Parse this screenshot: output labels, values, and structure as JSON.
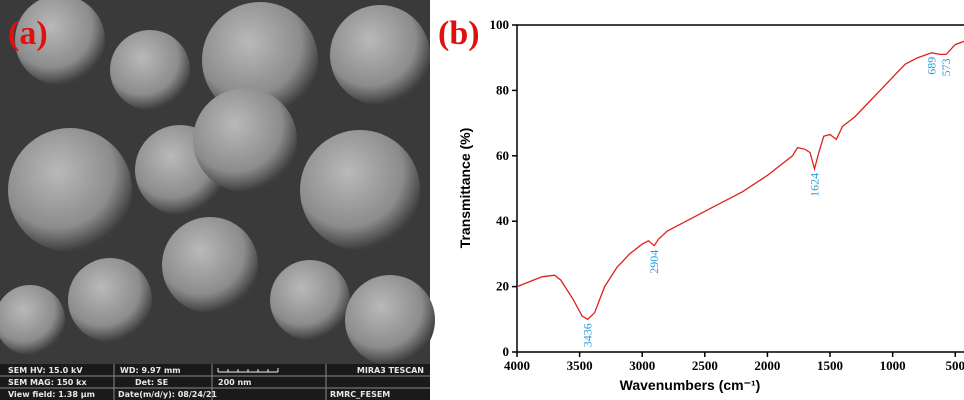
{
  "panel_labels": [
    "(a)",
    "(b)"
  ],
  "sem_info": {
    "hv": "SEM HV: 15.0 kV",
    "wd": "WD: 9.97 mm",
    "instrument": "MIRA3 TESCAN",
    "mag": "SEM MAG: 150 kx",
    "det": "Det: SE",
    "scale": "200 nm",
    "view_field": "View field: 1.38 μm",
    "date": "Date(m/d/y): 08/24/21",
    "lab": "RMRC_FESEM"
  },
  "chart_data": {
    "type": "line",
    "x_label": "Wavenumbers (cm⁻¹)",
    "y_label": "Transmittance (%)",
    "xlim": [
      4000,
      430
    ],
    "ylim": [
      0,
      100
    ],
    "xticks": [
      4000,
      3500,
      3000,
      2500,
      2000,
      1500,
      1000,
      500
    ],
    "yticks": [
      0,
      20,
      40,
      60,
      80,
      100
    ],
    "series": [
      {
        "color": "#e02020",
        "x": [
          4000,
          3800,
          3700,
          3650,
          3550,
          3480,
          3436,
          3380,
          3300,
          3200,
          3100,
          3000,
          2950,
          2904,
          2870,
          2800,
          2600,
          2400,
          2200,
          2000,
          1800,
          1760,
          1700,
          1660,
          1624,
          1590,
          1550,
          1500,
          1450,
          1400,
          1300,
          1200,
          1100,
          1000,
          900,
          800,
          689,
          620,
          573,
          500,
          430
        ],
        "y": [
          20,
          23,
          23.5,
          22,
          16,
          11,
          10,
          12,
          20,
          26,
          30,
          33,
          34,
          32.5,
          34.5,
          37,
          41,
          45,
          49,
          54,
          60,
          62.5,
          62,
          61,
          56,
          61,
          66,
          66.5,
          65,
          69,
          72,
          76,
          80,
          84,
          88,
          90,
          91.5,
          91,
          91,
          94,
          95
        ]
      }
    ],
    "peaks": [
      3436,
      2904,
      1624,
      689,
      573
    ]
  }
}
